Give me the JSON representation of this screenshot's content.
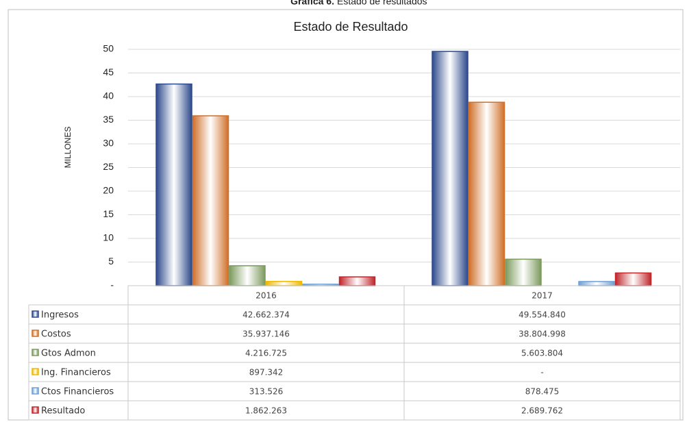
{
  "chart_data": {
    "type": "bar",
    "caption_label": "Gráfica 6.",
    "caption_text": "Estado de resultados",
    "title": "Estado de Resultado",
    "y_label": "MILLONES",
    "categories": [
      "2016",
      "2017"
    ],
    "ylim": [
      0,
      50
    ],
    "yticks": [
      {
        "value": 0,
        "label": "-"
      },
      5,
      10,
      15,
      20,
      25,
      30,
      35,
      40,
      45,
      50
    ],
    "grid": true,
    "series": [
      {
        "name": "Ingresos",
        "color": "#2e4a8c",
        "values": [
          42.662374,
          49.55484
        ],
        "value_labels": [
          "42.662.374",
          "49.554.840"
        ]
      },
      {
        "name": "Costos",
        "color": "#d0702a",
        "values": [
          35.937146,
          38.804998
        ],
        "value_labels": [
          "35.937.146",
          "38.804.998"
        ]
      },
      {
        "name": "Gtos Admon",
        "color": "#7c9a5e",
        "values": [
          4.216725,
          5.603804
        ],
        "value_labels": [
          "4.216.725",
          "5.603.804"
        ]
      },
      {
        "name": "Ing. Financieros",
        "color": "#f0b800",
        "values": [
          0.897342,
          0
        ],
        "value_labels": [
          "897.342",
          "-"
        ]
      },
      {
        "name": "Ctos Financieros",
        "color": "#6f9fd6",
        "values": [
          0.313526,
          0.878475
        ],
        "value_labels": [
          "313.526",
          "878.475"
        ]
      },
      {
        "name": "Resultado",
        "color": "#c0262c",
        "values": [
          1.862263,
          2.689762
        ],
        "value_labels": [
          "1.862.263",
          "2.689.762"
        ]
      }
    ]
  }
}
